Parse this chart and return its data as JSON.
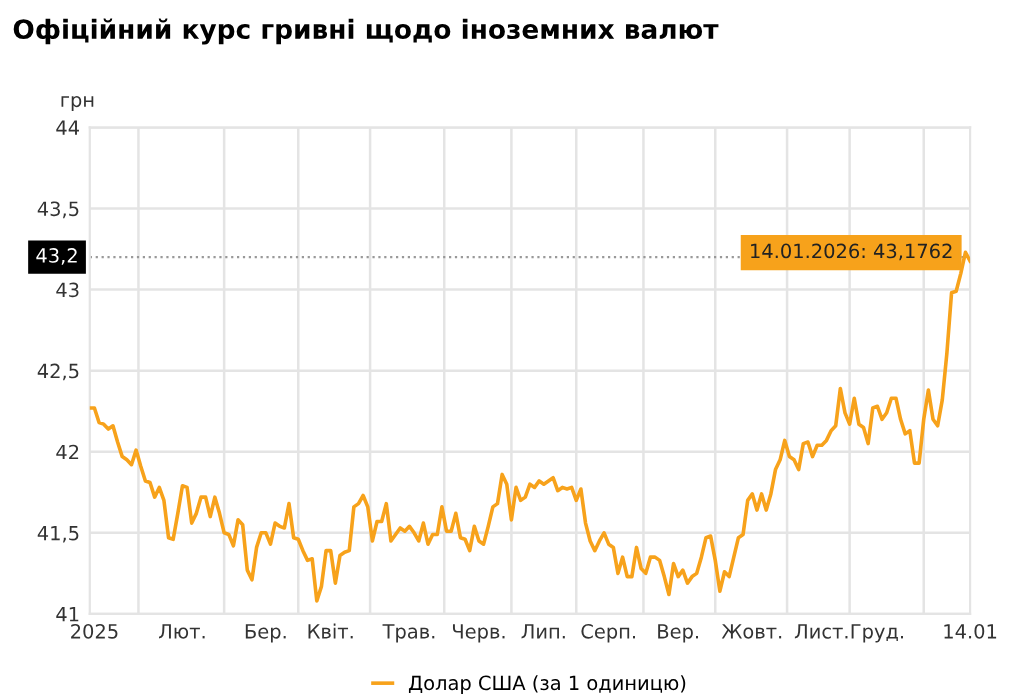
{
  "chart_data": {
    "type": "line",
    "title": "Офіційний курс гривні щодо іноземних валют",
    "ylabel": "грн",
    "categories": [
      null,
      "2025",
      null,
      null,
      null,
      null,
      null,
      null,
      null,
      null,
      null,
      null,
      null,
      null,
      null,
      null,
      null,
      null,
      null,
      null,
      "Лют.",
      null,
      null,
      null,
      null,
      null,
      null,
      null,
      null,
      null,
      null,
      null,
      null,
      null,
      null,
      null,
      null,
      null,
      "Бер.",
      null,
      null,
      null,
      null,
      null,
      null,
      null,
      null,
      null,
      null,
      null,
      null,
      null,
      "Квіт.",
      null,
      null,
      null,
      null,
      null,
      null,
      null,
      null,
      null,
      null,
      null,
      null,
      null,
      null,
      null,
      null,
      "Трав.",
      null,
      null,
      null,
      null,
      null,
      null,
      null,
      null,
      null,
      null,
      null,
      null,
      null,
      null,
      "Черв.",
      null,
      null,
      null,
      null,
      null,
      null,
      null,
      null,
      null,
      null,
      null,
      null,
      null,
      "Лип.",
      null,
      null,
      null,
      null,
      null,
      null,
      null,
      null,
      null,
      null,
      null,
      null,
      null,
      "Серп.",
      null,
      null,
      null,
      null,
      null,
      null,
      null,
      null,
      null,
      null,
      null,
      null,
      null,
      null,
      "Вер.",
      null,
      null,
      null,
      null,
      null,
      null,
      null,
      null,
      null,
      null,
      null,
      null,
      null,
      null,
      null,
      "Жовт.",
      null,
      null,
      null,
      null,
      null,
      null,
      null,
      null,
      null,
      null,
      null,
      null,
      null,
      null,
      "Лист.",
      null,
      null,
      null,
      null,
      null,
      null,
      null,
      null,
      null,
      null,
      null,
      "Груд.",
      null,
      null,
      null,
      null,
      null,
      null,
      null,
      null,
      null,
      null,
      null,
      null,
      null,
      null,
      null,
      null,
      null,
      null,
      null,
      "14.01"
    ],
    "ylim": [
      41,
      44
    ],
    "yticks": [
      41,
      {
        "value": 41.5,
        "label": "41,5"
      },
      42,
      {
        "value": 42.5,
        "label": "42,5"
      },
      43,
      {
        "value": 43.5,
        "label": "43,5"
      },
      44
    ],
    "grid": true,
    "legend": "bottom",
    "marker": "none",
    "line_style": "solid",
    "ref_lines": [
      {
        "axis": "y",
        "value": 43.2,
        "label": "43,2",
        "line_style": "dotted",
        "color": "#999999"
      }
    ],
    "annotations": [
      {
        "text": "14.01.2026: 43,1762",
        "x": "14.01",
        "y": 43.1762
      }
    ],
    "series": [
      {
        "name": "Долар США (за 1 одиницю)",
        "color": "#f7a21b",
        "values": [
          42.27,
          42.27,
          42.18,
          42.17,
          42.14,
          42.16,
          42.06,
          41.97,
          41.95,
          41.92,
          42.01,
          41.91,
          41.82,
          41.81,
          41.72,
          41.78,
          41.7,
          41.47,
          41.46,
          41.62,
          41.79,
          41.78,
          41.56,
          41.62,
          41.72,
          41.72,
          41.6,
          41.72,
          41.62,
          41.5,
          41.49,
          41.42,
          41.58,
          41.55,
          41.27,
          41.21,
          41.41,
          41.5,
          41.5,
          41.43,
          41.56,
          41.54,
          41.53,
          41.68,
          41.47,
          41.46,
          41.39,
          41.33,
          41.34,
          41.08,
          41.17,
          41.39,
          41.39,
          41.19,
          41.36,
          41.38,
          41.39,
          41.66,
          41.68,
          41.73,
          41.66,
          41.45,
          41.57,
          41.57,
          41.68,
          41.45,
          41.49,
          41.53,
          41.51,
          41.54,
          41.5,
          41.45,
          41.56,
          41.43,
          41.49,
          41.49,
          41.66,
          41.51,
          41.51,
          41.62,
          41.47,
          41.46,
          41.39,
          41.54,
          41.45,
          41.43,
          41.54,
          41.66,
          41.68,
          41.86,
          41.8,
          41.58,
          41.78,
          41.7,
          41.72,
          41.8,
          41.78,
          41.82,
          41.8,
          41.82,
          41.84,
          41.76,
          41.78,
          41.77,
          41.78,
          41.7,
          41.77,
          41.56,
          41.45,
          41.39,
          41.45,
          41.5,
          41.43,
          41.41,
          41.25,
          41.35,
          41.23,
          41.23,
          41.41,
          41.28,
          41.25,
          41.35,
          41.35,
          41.33,
          41.23,
          41.12,
          41.31,
          41.23,
          41.27,
          41.19,
          41.23,
          41.25,
          41.35,
          41.47,
          41.48,
          41.33,
          41.14,
          41.26,
          41.23,
          41.35,
          41.47,
          41.49,
          41.7,
          41.74,
          41.64,
          41.74,
          41.64,
          41.74,
          41.89,
          41.95,
          42.07,
          41.97,
          41.95,
          41.89,
          42.05,
          42.06,
          41.97,
          42.04,
          42.04,
          42.07,
          42.13,
          42.16,
          42.39,
          42.24,
          42.17,
          42.33,
          42.17,
          42.15,
          42.05,
          42.27,
          42.28,
          42.2,
          42.24,
          42.33,
          42.33,
          42.2,
          42.11,
          42.13,
          41.93,
          41.93,
          42.2,
          42.38,
          42.2,
          42.16,
          42.32,
          42.61,
          42.98,
          42.99,
          43.1,
          43.23,
          43.1762
        ]
      }
    ]
  }
}
